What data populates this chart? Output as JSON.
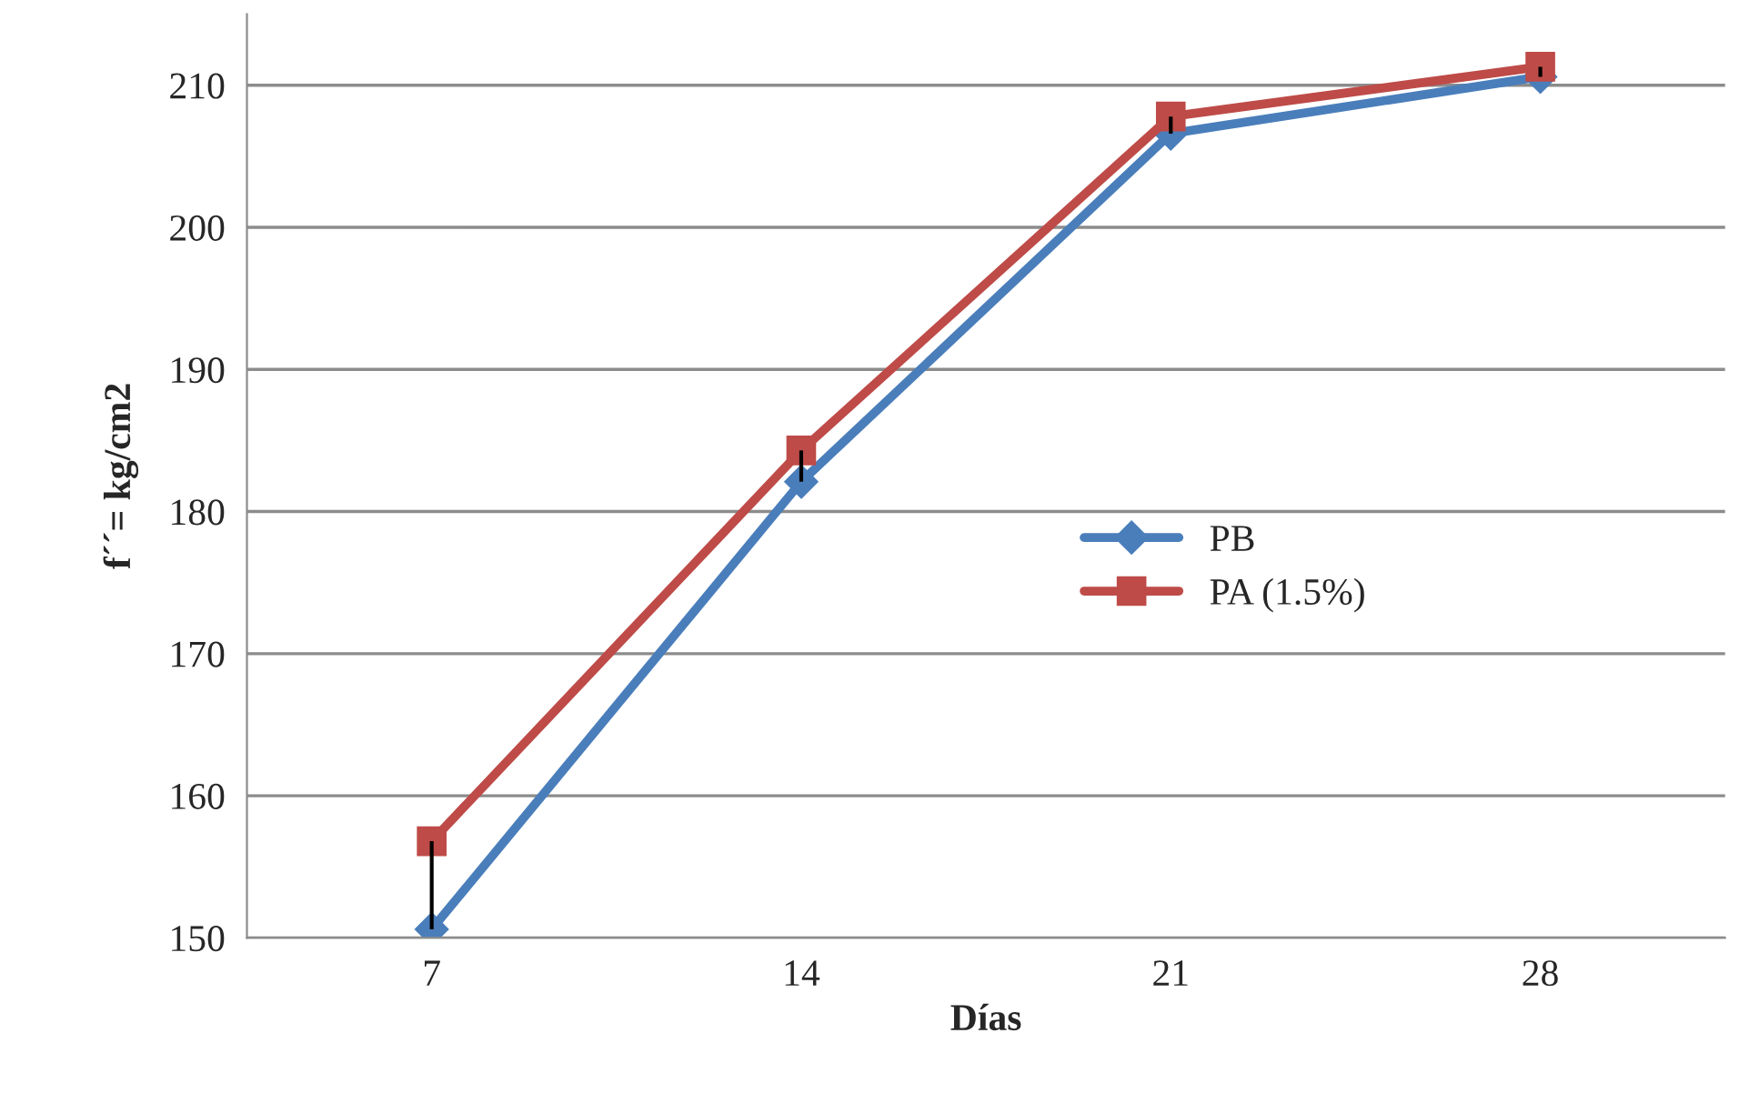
{
  "chart_data": {
    "type": "line",
    "xlabel": "Días",
    "ylabel": "f´´= kg/cm2",
    "categories": [
      "7",
      "14",
      "21",
      "28"
    ],
    "series": [
      {
        "name": "PB",
        "color": "#4a7ebb",
        "marker": "diamond",
        "values": [
          150.6,
          182.1,
          206.6,
          210.6
        ],
        "errors": [
          [
            150.6,
            156.8
          ],
          [
            182.1,
            184.3
          ],
          [
            206.6,
            207.8
          ],
          [
            210.6,
            211.3
          ]
        ]
      },
      {
        "name": "PA (1.5%)",
        "color": "#be4b48",
        "marker": "square",
        "values": [
          156.8,
          184.3,
          207.8,
          211.3
        ]
      }
    ],
    "ylim": [
      150,
      215
    ],
    "yticks": [
      150,
      160,
      170,
      180,
      190,
      200,
      210
    ],
    "grid": "y",
    "legend": "right"
  }
}
